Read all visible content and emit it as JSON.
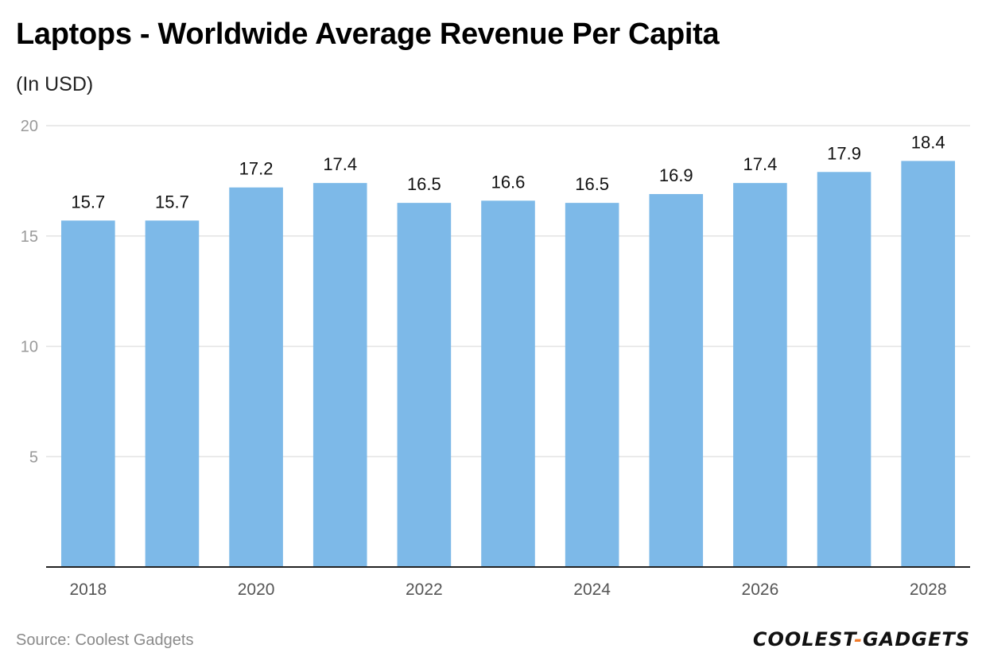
{
  "title": "Laptops - Worldwide Average Revenue Per Capita",
  "subtitle": "(In USD)",
  "source": "Source: Coolest Gadgets",
  "brand": {
    "left": "COOLEST",
    "sep": "-",
    "right": "GADGETS"
  },
  "colors": {
    "bar": "#7db9e8",
    "grid": "#e3e3e3",
    "axis": "#222222",
    "brand_accent": "#f07a2a"
  },
  "chart_data": {
    "type": "bar",
    "title": "Laptops - Worldwide Average Revenue Per Capita",
    "ylabel": "(In USD)",
    "xlabel": "",
    "categories": [
      "2018",
      "2019",
      "2020",
      "2021",
      "2022",
      "2023",
      "2024",
      "2025",
      "2026",
      "2027",
      "2028"
    ],
    "values": [
      15.7,
      15.7,
      17.2,
      17.4,
      16.5,
      16.6,
      16.5,
      16.9,
      17.4,
      17.9,
      18.4
    ],
    "value_labels": [
      "15.7",
      "15.7",
      "17.2",
      "17.4",
      "16.5",
      "16.6",
      "16.5",
      "16.9",
      "17.4",
      "17.9",
      "18.4"
    ],
    "x_tick_labels": [
      "2018",
      "",
      "2020",
      "",
      "2022",
      "",
      "2024",
      "",
      "2026",
      "",
      "2028"
    ],
    "y_ticks": [
      5,
      10,
      15,
      20
    ],
    "y_tick_labels": [
      "5",
      "10",
      "15",
      "20"
    ],
    "ylim": [
      0,
      20
    ],
    "grid": true
  }
}
